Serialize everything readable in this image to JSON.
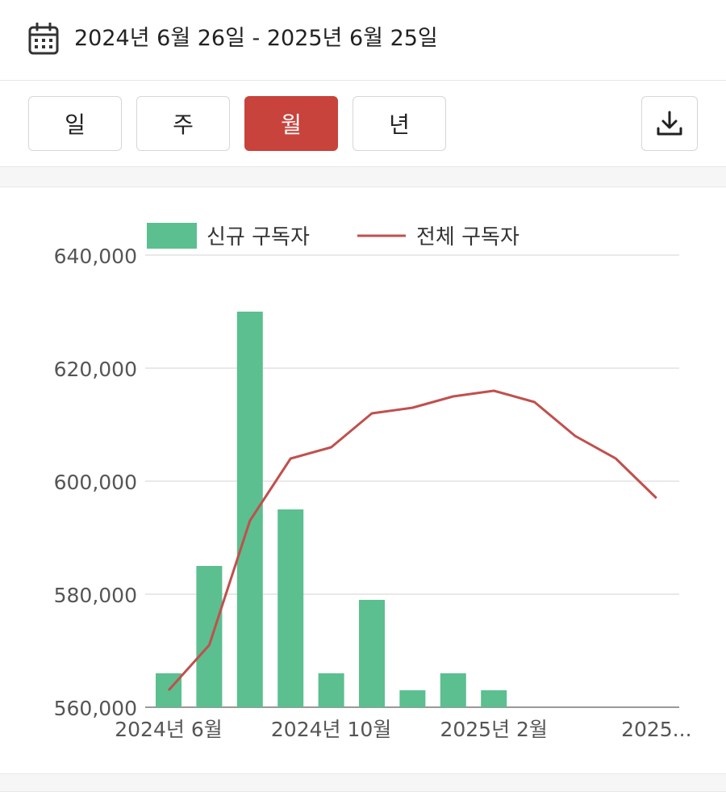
{
  "header": {
    "calendar_icon": "calendar-icon",
    "date_range": "2024년 6월 26일 - 2025년 6월 25일"
  },
  "period_tabs": [
    {
      "label": "일",
      "active": false
    },
    {
      "label": "주",
      "active": false
    },
    {
      "label": "월",
      "active": true
    },
    {
      "label": "년",
      "active": false
    }
  ],
  "download": {
    "icon": "download-icon"
  },
  "colors": {
    "accent": "#c8433b",
    "bar": "#5bbf8f",
    "line": "#c0504d"
  },
  "chart_data": {
    "type": "bar",
    "title": "",
    "xlabel": "",
    "ylabel": "",
    "ylim": [
      560000,
      640000
    ],
    "yticks": [
      560000,
      580000,
      600000,
      620000,
      640000
    ],
    "ytick_labels": [
      "560,000",
      "580,000",
      "600,000",
      "620,000",
      "640,000"
    ],
    "x_tick_labels": [
      {
        "index": 0,
        "label": "2024년 6월"
      },
      {
        "index": 4,
        "label": "2024년 10월"
      },
      {
        "index": 8,
        "label": "2025년 2월"
      },
      {
        "index": 12,
        "label": "2025..."
      }
    ],
    "categories": [
      "2024-06",
      "2024-07",
      "2024-08",
      "2024-09",
      "2024-10",
      "2024-11",
      "2024-12",
      "2025-01",
      "2025-02",
      "2025-03",
      "2025-04",
      "2025-05",
      "2025-06"
    ],
    "legend_position": "top",
    "grid": true,
    "series": [
      {
        "name": "신규 구독자",
        "type": "bar",
        "color": "#5bbf8f",
        "values": [
          566000,
          585000,
          630000,
          595000,
          566000,
          579000,
          563000,
          566000,
          563000,
          null,
          null,
          null,
          null
        ]
      },
      {
        "name": "전체 구독자",
        "type": "line",
        "color": "#c0504d",
        "values": [
          563000,
          571000,
          593000,
          604000,
          606000,
          612000,
          613000,
          615000,
          616000,
          614000,
          608000,
          604000,
          597000
        ]
      }
    ]
  }
}
